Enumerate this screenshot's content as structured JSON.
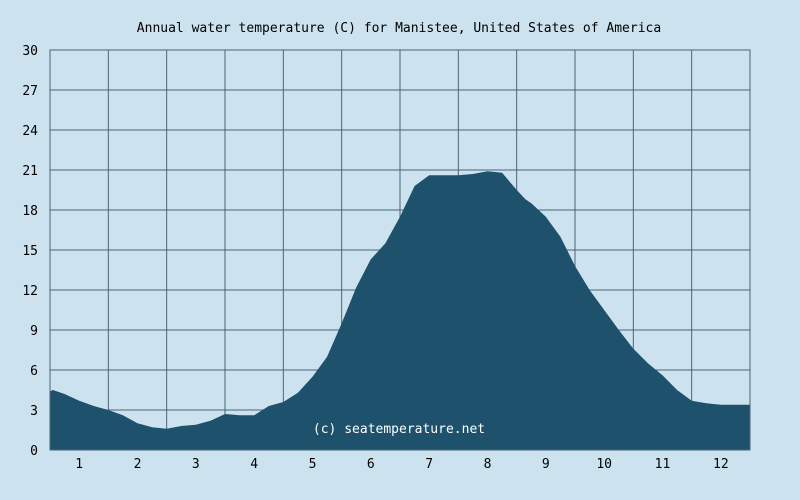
{
  "chart_data": {
    "type": "area",
    "title": "Annual water temperature (C) for Manistee, United States of America",
    "xlabel": "",
    "ylabel": "",
    "x_ticks": [
      "1",
      "2",
      "3",
      "4",
      "5",
      "6",
      "7",
      "8",
      "9",
      "10",
      "11",
      "12"
    ],
    "y_ticks": [
      "0",
      "3",
      "6",
      "9",
      "12",
      "15",
      "18",
      "21",
      "24",
      "27",
      "30"
    ],
    "xlim": [
      0.5,
      12.5
    ],
    "ylim": [
      0,
      30
    ],
    "grid": true,
    "watermark": "(c) seatemperature.net",
    "colors": {
      "background": "#cce3ef",
      "fill": "#1e516b",
      "grid": "#4a6577"
    },
    "series": [
      {
        "x": [
          0.5,
          0.55,
          0.75,
          1.0,
          1.25,
          1.5,
          1.75,
          2.0,
          2.25,
          2.5,
          2.75,
          3.0,
          3.25,
          3.5,
          3.75,
          4.0,
          4.25,
          4.5,
          4.75,
          5.0,
          5.25,
          5.5,
          5.75,
          6.0,
          6.25,
          6.5,
          6.75,
          7.0,
          7.25,
          7.5,
          7.75,
          8.0,
          8.25,
          8.5,
          8.65,
          8.75,
          9.0,
          9.25,
          9.5,
          9.75,
          10.0,
          10.25,
          10.5,
          10.75,
          11.0,
          11.25,
          11.5,
          11.75,
          12.0,
          12.25,
          12.5
        ],
        "y": [
          4.4,
          4.5,
          4.2,
          3.7,
          3.3,
          3.0,
          2.6,
          2.0,
          1.7,
          1.6,
          1.8,
          1.9,
          2.2,
          2.7,
          2.6,
          2.6,
          3.3,
          3.6,
          4.3,
          5.5,
          7.0,
          9.5,
          12.2,
          14.3,
          15.5,
          17.5,
          19.8,
          20.6,
          20.6,
          20.6,
          20.7,
          20.9,
          20.8,
          19.5,
          18.8,
          18.5,
          17.5,
          16.0,
          13.8,
          12.0,
          10.5,
          9.0,
          7.6,
          6.5,
          5.6,
          4.5,
          3.7,
          3.5,
          3.4,
          3.4,
          3.4
        ]
      }
    ]
  }
}
